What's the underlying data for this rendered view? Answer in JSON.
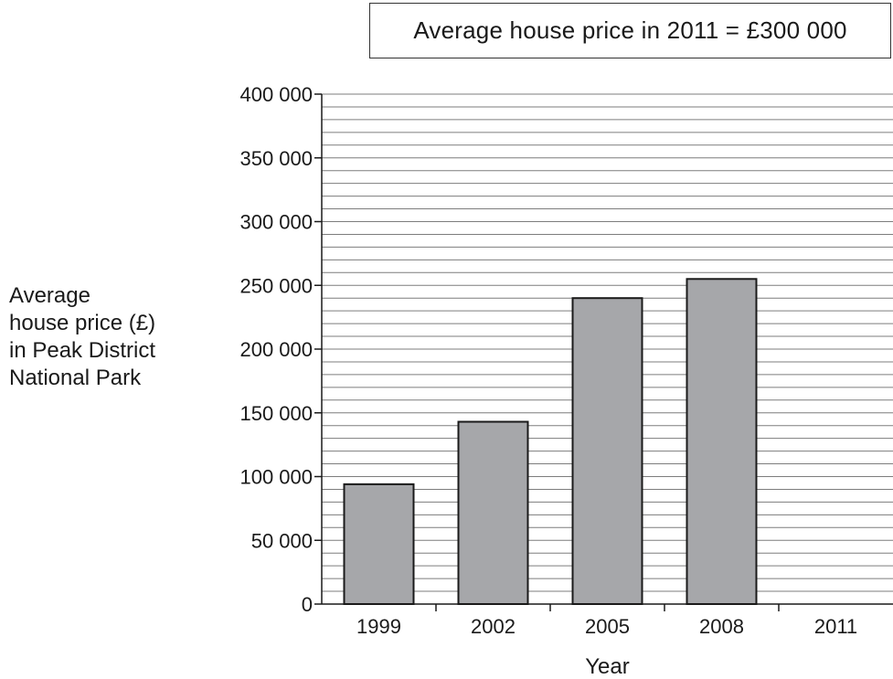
{
  "annotation": "Average house price in 2011 = £300 000",
  "chart_data": {
    "type": "bar",
    "categories": [
      "1999",
      "2002",
      "2005",
      "2008",
      "2011"
    ],
    "values": [
      94000,
      143000,
      240000,
      255000,
      null
    ],
    "xlabel": "Year",
    "ylabel_lines": [
      "Average",
      "house price (£)",
      "in Peak District",
      "National Park"
    ],
    "ylim": [
      0,
      400000
    ],
    "major_ticks": [
      {
        "value": 0,
        "label": "0"
      },
      {
        "value": 50000,
        "label": "50 000"
      },
      {
        "value": 100000,
        "label": "100 000"
      },
      {
        "value": 150000,
        "label": "150 000"
      },
      {
        "value": 200000,
        "label": "200 000"
      },
      {
        "value": 250000,
        "label": "250 000"
      },
      {
        "value": 300000,
        "label": "300 000"
      },
      {
        "value": 350000,
        "label": "350 000"
      },
      {
        "value": 400000,
        "label": "400 000"
      }
    ],
    "minor_gridline_step": 10000,
    "grid": true,
    "bar_color": "#a6a7aa"
  }
}
